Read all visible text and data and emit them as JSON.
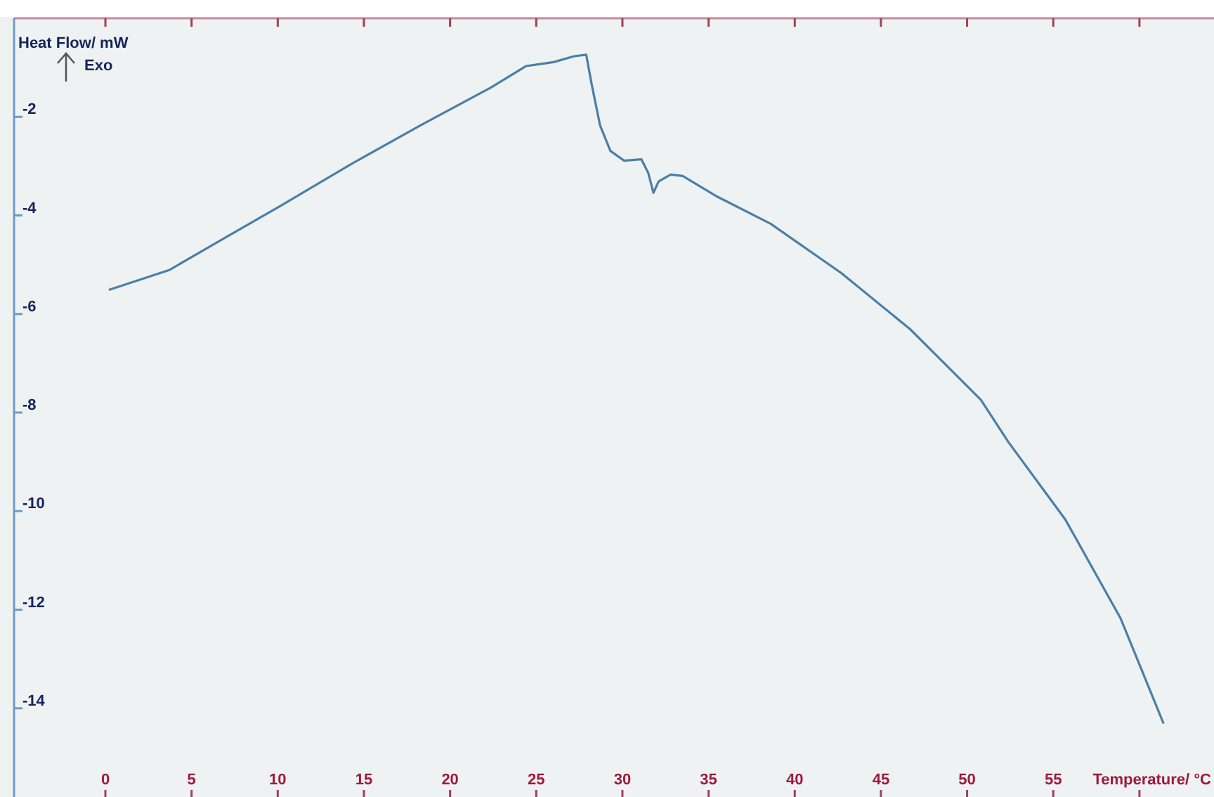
{
  "chart_data": {
    "type": "line",
    "xlabel": "Temperature/ °C",
    "ylabel": "Heat Flow/ mW",
    "annotations": [
      "Exo"
    ],
    "xlim": [
      -5.3,
      64
    ],
    "ylim": [
      -15.8,
      0
    ],
    "xticks": [
      0,
      5,
      10,
      15,
      20,
      25,
      30,
      35,
      40,
      45,
      50,
      55,
      {
        "value": 60,
        "label": null
      }
    ],
    "yticks": [
      -2,
      -4,
      -6,
      -8,
      -10,
      -12,
      -14
    ],
    "grid": false,
    "series": [
      {
        "color": "#4a7fa8",
        "x": [
          0.2,
          3.7,
          6.9,
          10.2,
          14.2,
          18.3,
          22.4,
          24.4,
          26,
          27.2,
          27.9,
          28.2,
          28.7,
          29.3,
          30.1,
          31.1,
          31.5,
          31.8,
          32.1,
          32.8,
          33.5,
          35.4,
          38.6,
          42.7,
          46.7,
          50.8,
          52.4,
          55.7,
          58.9,
          61.4
        ],
        "values": [
          -5.51,
          -5.11,
          -4.46,
          -3.8,
          -2.97,
          -2.17,
          -1.4,
          -0.97,
          -0.89,
          -0.77,
          -0.74,
          -1.31,
          -2.17,
          -2.69,
          -2.89,
          -2.86,
          -3.14,
          -3.54,
          -3.31,
          -3.17,
          -3.2,
          -3.6,
          -4.17,
          -5.17,
          -6.31,
          -7.74,
          -8.6,
          -10.17,
          -12.17,
          -14.31
        ]
      }
    ]
  }
}
